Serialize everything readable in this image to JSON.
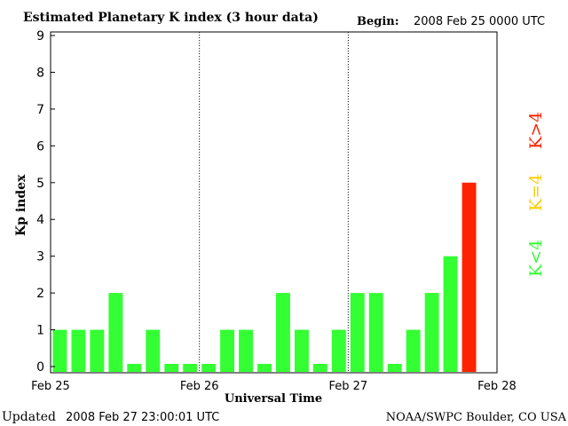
{
  "chart_data": {
    "type": "bar",
    "title": "Estimated Planetary K index (3 hour data)",
    "begin_label": "Begin:",
    "begin_value": "2008 Feb 25 0000 UTC",
    "ylabel": "Kp index",
    "xlabel": "Universal Time",
    "ylim": [
      0,
      9
    ],
    "y_ticks": [
      "0",
      "1",
      "2",
      "3",
      "4",
      "5",
      "6",
      "7",
      "8",
      "9"
    ],
    "x_ticks": [
      "Feb 25",
      "Feb 26",
      "Feb 27",
      "Feb 28"
    ],
    "day_separators": true,
    "values": [
      1,
      1,
      1,
      2,
      0,
      1,
      0,
      0,
      0,
      1,
      1,
      0,
      2,
      1,
      0,
      1,
      2,
      2,
      0,
      1,
      2,
      3,
      5
    ],
    "legend": [
      {
        "label": "K<4",
        "color": "#33ff33"
      },
      {
        "label": "K=4",
        "color": "#ffcc00"
      },
      {
        "label": "K>4",
        "color": "#ff2200"
      }
    ],
    "bar_colors": {
      "low": "#33ff33",
      "equal": "#ffcc00",
      "high": "#ff2200"
    }
  },
  "footer": {
    "updated_label": "Updated",
    "updated_value": "2008 Feb 27 23:00:01 UTC",
    "credit": "NOAA/SWPC Boulder, CO USA"
  }
}
